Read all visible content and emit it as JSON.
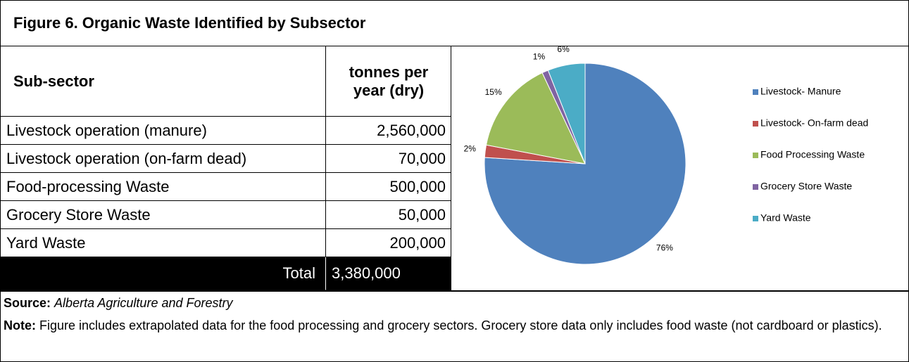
{
  "header": {
    "title": "Figure 6. Organic Waste Identified by Subsector"
  },
  "table": {
    "header": [
      "Sub-sector",
      "tonnes per year (dry)"
    ],
    "rows": [
      [
        "Livestock operation (manure)",
        "2,560,000"
      ],
      [
        "Livestock operation (on-farm dead)",
        "70,000"
      ],
      [
        "Food-processing Waste",
        "500,000"
      ],
      [
        "Grocery Store Waste",
        "50,000"
      ],
      [
        "Yard Waste",
        "200,000"
      ]
    ],
    "total": [
      "Total",
      "3,380,000"
    ]
  },
  "chart_data": {
    "type": "pie",
    "categories": [
      "Livestock- Manure",
      "Livestock- On-farm dead",
      "Food Processing Waste",
      "Grocery Store Waste",
      "Yard Waste"
    ],
    "values": [
      76,
      2,
      15,
      1,
      6
    ],
    "value_labels": [
      "76%",
      "2%",
      "15%",
      "1%",
      "6%"
    ],
    "colors": [
      "#4f81bd",
      "#c0504d",
      "#9bbb59",
      "#8064a2",
      "#4bacc6"
    ],
    "legend": "right"
  },
  "footer": {
    "source_label": "Source:",
    "source": "Alberta Agriculture and Forestry",
    "note_label": "Note:",
    "note": "Figure includes extrapolated data for the food processing and grocery sectors. Grocery store data only includes food waste (not cardboard or plastics)."
  }
}
